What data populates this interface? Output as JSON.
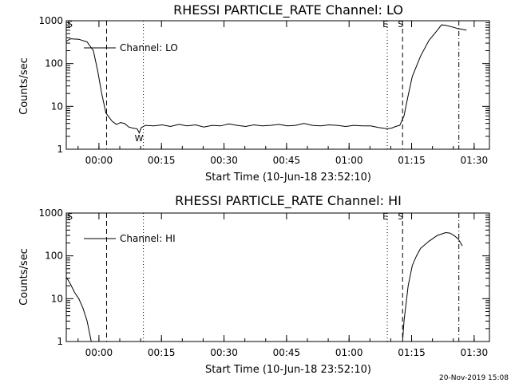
{
  "footer_timestamp": "20-Nov-2019 15:08",
  "chart_data": [
    {
      "type": "line",
      "title": "RHESSI PARTICLE_RATE Channel: LO",
      "xlabel": "Start Time (10-Jun-18 23:52:10)",
      "ylabel": "Counts/sec",
      "yscale": "log",
      "ylim": [
        1,
        1000
      ],
      "xlim_minutes_after_start": [
        0,
        101.5
      ],
      "x_tick_labels": [
        "00:00",
        "00:15",
        "00:30",
        "00:45",
        "01:00",
        "01:15",
        "01:30"
      ],
      "y_tick_labels": [
        "1",
        "10",
        "100",
        "1000"
      ],
      "legend": {
        "position": "top-left",
        "entries": [
          "Channel: LO"
        ]
      },
      "markers": [
        {
          "label": "S",
          "style": "dashed",
          "time": "23:52:10"
        },
        {
          "label": "",
          "style": "dashed",
          "time": "00:01:50"
        },
        {
          "label": "",
          "style": "dotted",
          "time": "00:10:40"
        },
        {
          "label": "W",
          "style": "none",
          "time": "00:09:20"
        },
        {
          "label": "E",
          "style": "dotted",
          "time": "01:09:10"
        },
        {
          "label": "S",
          "style": "dashed",
          "time": "01:12:50"
        },
        {
          "label": "",
          "style": "dashdot",
          "time": "01:26:20"
        }
      ],
      "series": [
        {
          "name": "Channel: LO",
          "x": [
            "23:52:10",
            "23:53:10",
            "23:55:10",
            "23:57:10",
            "23:58:40",
            "23:59:40",
            "00:00:40",
            "00:01:40",
            "00:03:10",
            "00:04:10",
            "00:05:10",
            "00:06:10",
            "00:07:10",
            "00:08:10",
            "00:09:10",
            "00:09:40",
            "00:10:10",
            "00:11:10",
            "00:13:10",
            "00:15:10",
            "00:17:10",
            "00:19:10",
            "00:21:10",
            "00:23:10",
            "00:25:10",
            "00:27:10",
            "00:29:10",
            "00:31:10",
            "00:33:10",
            "00:35:10",
            "00:37:10",
            "00:39:10",
            "00:41:10",
            "00:43:10",
            "00:45:10",
            "00:47:10",
            "00:49:10",
            "00:51:10",
            "00:53:10",
            "00:55:10",
            "00:57:10",
            "00:59:10",
            "01:01:10",
            "01:03:10",
            "01:05:10",
            "01:07:10",
            "01:09:10",
            "01:10:10",
            "01:11:10",
            "01:12:10",
            "01:13:10",
            "01:14:10",
            "01:15:10",
            "01:17:10",
            "01:19:10",
            "01:21:10",
            "01:22:10",
            "01:23:10",
            "01:25:10",
            "01:26:10",
            "01:27:10",
            "01:28:10"
          ],
          "values": [
            330,
            380,
            370,
            320,
            200,
            70,
            20,
            7,
            4.5,
            3.8,
            4.2,
            4.0,
            3.3,
            3.1,
            3.0,
            2.4,
            3.2,
            3.6,
            3.5,
            3.7,
            3.4,
            3.8,
            3.5,
            3.7,
            3.3,
            3.6,
            3.5,
            3.9,
            3.6,
            3.4,
            3.7,
            3.5,
            3.6,
            3.8,
            3.5,
            3.6,
            4.0,
            3.6,
            3.5,
            3.7,
            3.6,
            3.4,
            3.6,
            3.5,
            3.5,
            3.2,
            3.0,
            3.1,
            3.4,
            3.6,
            6,
            18,
            50,
            150,
            350,
            600,
            800,
            780,
            700,
            650,
            630,
            600
          ]
        }
      ]
    },
    {
      "type": "line",
      "title": "RHESSI PARTICLE_RATE Channel: HI",
      "xlabel": "Start Time (10-Jun-18 23:52:10)",
      "ylabel": "Counts/sec",
      "yscale": "log",
      "ylim": [
        1,
        1000
      ],
      "xlim_minutes_after_start": [
        0,
        101.5
      ],
      "x_tick_labels": [
        "00:00",
        "00:15",
        "00:30",
        "00:45",
        "01:00",
        "01:15",
        "01:30"
      ],
      "y_tick_labels": [
        "1",
        "10",
        "100",
        "1000"
      ],
      "legend": {
        "position": "top-left",
        "entries": [
          "Channel: HI"
        ]
      },
      "markers": [
        {
          "label": "S",
          "style": "dashed",
          "time": "23:52:10"
        },
        {
          "label": "",
          "style": "dashed",
          "time": "00:01:50"
        },
        {
          "label": "",
          "style": "dotted",
          "time": "00:10:40"
        },
        {
          "label": "E",
          "style": "dotted",
          "time": "01:09:10"
        },
        {
          "label": "S",
          "style": "dashed",
          "time": "01:12:50"
        },
        {
          "label": "",
          "style": "dashdot",
          "time": "01:26:20"
        }
      ],
      "series": [
        {
          "name": "Channel: HI",
          "segments": [
            {
              "x": [
                "23:52:10",
                "23:53:10",
                "23:54:10",
                "23:55:10",
                "23:56:10",
                "23:57:10",
                "23:58:10"
              ],
              "values": [
                32,
                22,
                14,
                10,
                6,
                3,
                1
              ]
            },
            {
              "x": [
                "01:12:50",
                "01:13:10",
                "01:14:10",
                "01:15:10",
                "01:16:10",
                "01:17:10",
                "01:19:10",
                "01:21:10",
                "01:23:10",
                "01:24:10",
                "01:25:10",
                "01:26:10",
                "01:27:10"
              ],
              "values": [
                1,
                3,
                20,
                60,
                100,
                150,
                220,
                300,
                350,
                340,
                300,
                250,
                170
              ]
            }
          ]
        }
      ]
    }
  ]
}
